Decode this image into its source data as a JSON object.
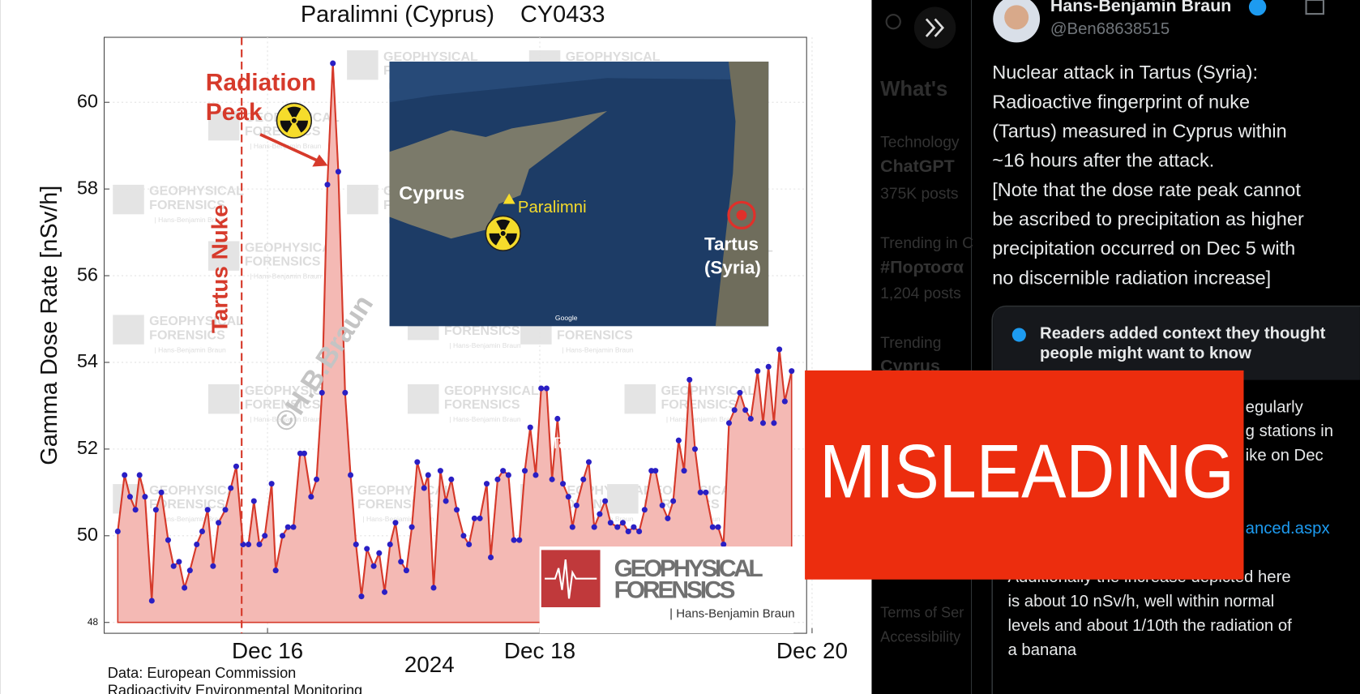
{
  "chart_data": {
    "type": "line",
    "title": "Paralimni (Cyprus)    CY0433",
    "ylabel": "Gamma Dose Rate [nSv/h]",
    "xlabel": "2024",
    "source_lines": [
      "Data: European Commission",
      "Radioactivity Environmental Monitoring"
    ],
    "color": "#d63a2b",
    "fill_color": "#f4b9b4",
    "marker_color": "#2a1fc4",
    "grid": true,
    "xlim": [
      14.8,
      19.96
    ],
    "ylim": [
      47.75,
      61.5
    ],
    "xticks": [
      {
        "value": 16,
        "label": "Dec 16"
      },
      {
        "value": 18,
        "label": "Dec 18"
      },
      {
        "value": 20,
        "label": "Dec 20"
      }
    ],
    "yticks": [
      48,
      50,
      52,
      54,
      56,
      58,
      60
    ],
    "x": [
      14.9,
      14.95,
      14.99,
      15.03,
      15.06,
      15.1,
      15.15,
      15.18,
      15.22,
      15.27,
      15.31,
      15.35,
      15.39,
      15.43,
      15.48,
      15.52,
      15.56,
      15.6,
      15.64,
      15.69,
      15.73,
      15.77,
      15.82,
      15.86,
      15.9,
      15.94,
      15.98,
      16.03,
      16.06,
      16.11,
      16.15,
      16.19,
      16.24,
      16.27,
      16.32,
      16.36,
      16.4,
      16.44,
      16.48,
      16.52,
      16.57,
      16.61,
      16.65,
      16.69,
      16.73,
      16.78,
      16.82,
      16.86,
      16.9,
      16.94,
      16.98,
      17.02,
      17.06,
      17.1,
      17.15,
      17.18,
      17.22,
      17.27,
      17.31,
      17.35,
      17.39,
      17.44,
      17.48,
      17.52,
      17.56,
      17.61,
      17.64,
      17.69,
      17.73,
      17.77,
      17.81,
      17.85,
      17.89,
      17.93,
      17.97,
      18.01,
      18.05,
      18.09,
      18.13,
      18.17,
      18.21,
      18.24,
      18.27,
      18.32,
      18.36,
      18.4,
      18.44,
      18.48,
      18.52,
      18.57,
      18.61,
      18.65,
      18.69,
      18.73,
      18.77,
      18.82,
      18.85,
      18.9,
      18.94,
      18.98,
      19.02,
      19.06,
      19.1,
      19.14,
      19.18,
      19.22,
      19.27,
      19.31,
      19.35,
      19.39,
      19.43,
      19.47,
      19.51,
      19.55,
      19.6,
      19.64,
      19.68,
      19.72,
      19.76,
      19.8,
      19.85
    ],
    "values": [
      50.1,
      51.4,
      50.9,
      50.6,
      51.4,
      50.9,
      48.5,
      50.6,
      51.0,
      49.9,
      49.3,
      49.4,
      48.8,
      49.2,
      49.8,
      50.1,
      50.6,
      49.3,
      50.3,
      50.6,
      51.1,
      51.6,
      49.8,
      49.8,
      50.8,
      49.8,
      50.0,
      51.2,
      49.2,
      50.0,
      50.2,
      50.2,
      51.9,
      51.9,
      50.9,
      51.3,
      53.3,
      58.1,
      60.9,
      58.4,
      53.3,
      51.4,
      49.8,
      48.6,
      49.7,
      49.3,
      49.6,
      48.7,
      49.8,
      50.3,
      49.4,
      49.2,
      50.2,
      51.7,
      51.1,
      51.4,
      48.8,
      51.5,
      50.8,
      51.3,
      50.6,
      50.0,
      49.8,
      50.4,
      50.4,
      51.2,
      49.5,
      51.3,
      51.5,
      51.4,
      49.9,
      49.9,
      51.5,
      52.5,
      51.4,
      53.4,
      53.4,
      51.3,
      52.7,
      51.2,
      50.9,
      50.2,
      50.7,
      51.3,
      51.7,
      50.2,
      50.5,
      50.8,
      50.3,
      50.2,
      50.3,
      50.1,
      50.2,
      50.1,
      50.6,
      51.5,
      51.5,
      50.7,
      50.4,
      50.8,
      52.2,
      51.5,
      53.6,
      52.0,
      51.0,
      51.0,
      50.2,
      50.2,
      49.8,
      52.6,
      52.9,
      53.3,
      52.9,
      52.7,
      53.8,
      52.6,
      53.9,
      52.6,
      54.3,
      53.1,
      53.8
    ],
    "annotations": {
      "event": {
        "text": "Tartus Nuke",
        "x": 15.81
      },
      "peak": [
        "Radiation",
        "Peak"
      ],
      "copyright": "©H.B.Braun",
      "stray_label": "Tartus"
    },
    "watermark": [
      "GEOPHYSICAL",
      "FORENSICS",
      "| Hans-Benjamin Braun"
    ],
    "map": {
      "cyprus": "Cyprus",
      "paralimni": "Paralimni",
      "tartus": [
        "Tartus",
        "(Syria)"
      ],
      "credit": "Google"
    }
  },
  "sidebar": {
    "heading": "What's",
    "items": [
      {
        "text": "Technology",
        "bold": false
      },
      {
        "text": "ChatGPT",
        "bold": true
      },
      {
        "text": "375K posts",
        "bold": false
      },
      {
        "text": "Trending in C",
        "bold": false
      },
      {
        "text": "#Πορτοσα",
        "bold": true
      },
      {
        "text": "1,204 posts",
        "bold": false
      },
      {
        "text": "Trending",
        "bold": false
      },
      {
        "text": "Cyprus",
        "bold": true
      }
    ],
    "footer": [
      "Terms of Ser",
      "Accessibility"
    ]
  },
  "tweet": {
    "name": "Hans-Benjamin Braun",
    "handle": "@Ben68638515",
    "text_lines": [
      "Nuclear attack in Tartus (Syria):",
      "Radioactive fingerprint of nuke",
      "(Tartus) measured in Cyprus within",
      "~16 hours after the attack.",
      "[Note that the dose rate peak cannot",
      "be ascribed to precipitation as higher",
      "precipitation occurred on Dec 5 with",
      "no discernible radiation increase]"
    ]
  },
  "community_note": {
    "header_lines": [
      "Readers added context they thought",
      "people might want to know"
    ],
    "visible_fragments": [
      "egularly",
      "g stations in",
      "ike on Dec",
      "anced.aspx"
    ],
    "text_lines": [
      "Additionally the increase depicted here",
      "is about 10 nSv/h, well within normal",
      "levels and about 1/10th the radiation of",
      "a banana"
    ]
  },
  "stamp": "MISLEADING"
}
